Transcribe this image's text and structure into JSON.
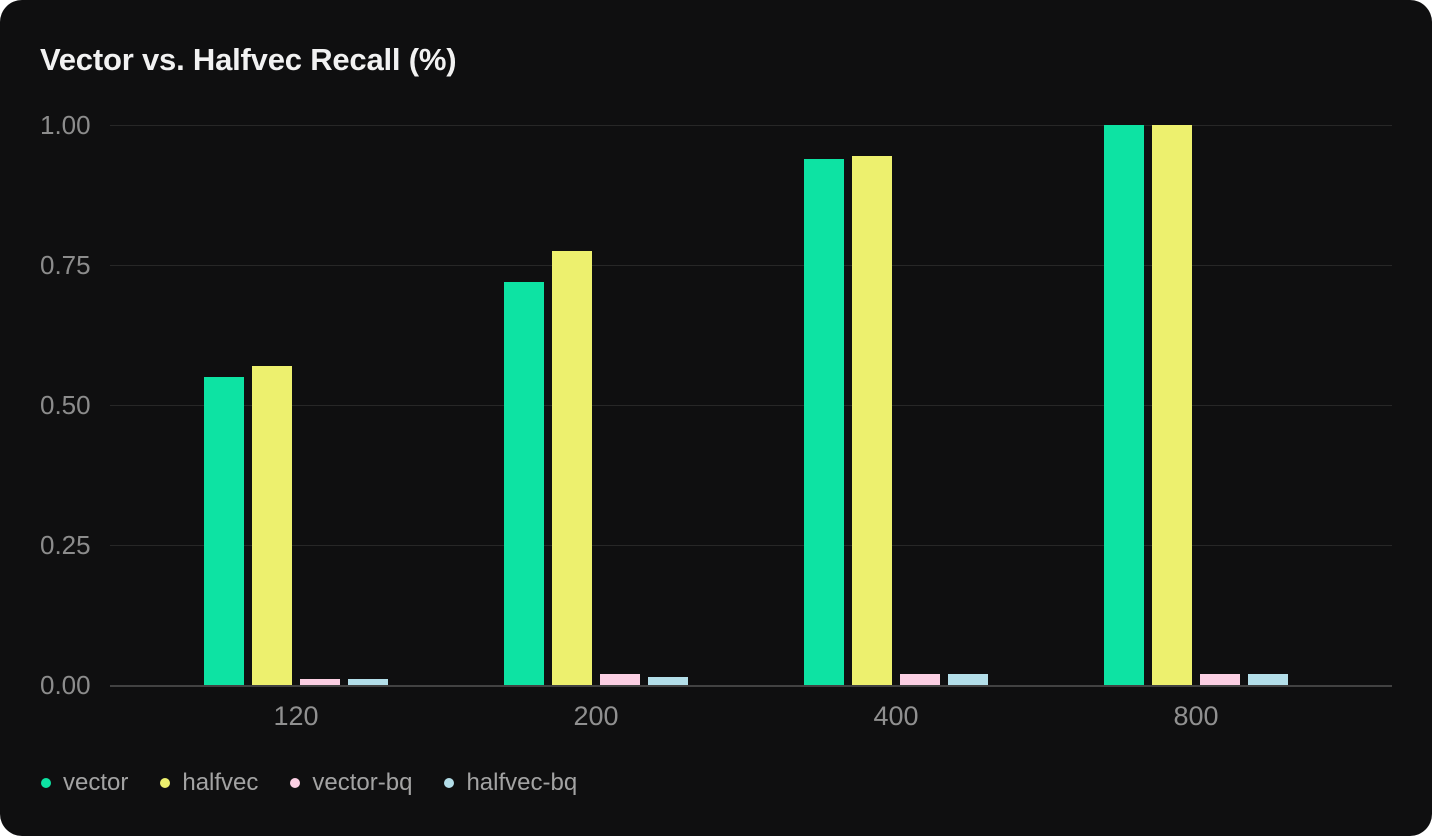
{
  "title": "Vector vs. Halfvec Recall (%)",
  "colors": {
    "card_background": "#0f0f10",
    "page_background": "#ffffff",
    "title_text": "#f2f2f2",
    "axis_text": "#8c8c8c",
    "legend_text": "#a3a3a3",
    "gridline": "#272727",
    "zero_line": "#424242"
  },
  "chart_data": {
    "type": "bar",
    "title": "Vector vs. Halfvec Recall (%)",
    "xlabel": "",
    "ylabel": "",
    "categories": [
      "120",
      "200",
      "400",
      "800"
    ],
    "series": [
      {
        "name": "vector",
        "color": "#0de3a3",
        "values": [
          0.55,
          0.72,
          0.94,
          1.0
        ]
      },
      {
        "name": "halfvec",
        "color": "#edf06e",
        "values": [
          0.57,
          0.775,
          0.945,
          1.0
        ]
      },
      {
        "name": "vector-bq",
        "color": "#fbcfe3",
        "values": [
          0.01,
          0.02,
          0.02,
          0.02
        ]
      },
      {
        "name": "halfvec-bq",
        "color": "#b3dee9",
        "values": [
          0.01,
          0.015,
          0.02,
          0.02
        ]
      }
    ],
    "ylim": [
      0,
      1
    ],
    "y_ticks": [
      {
        "value": 1.0,
        "label": "1.00"
      },
      {
        "value": 0.75,
        "label": "0.75"
      },
      {
        "value": 0.5,
        "label": "0.50"
      },
      {
        "value": 0.25,
        "label": "0.25"
      },
      {
        "value": 0.0,
        "label": "0.00"
      }
    ],
    "grid": true,
    "legend_position": "bottom"
  }
}
